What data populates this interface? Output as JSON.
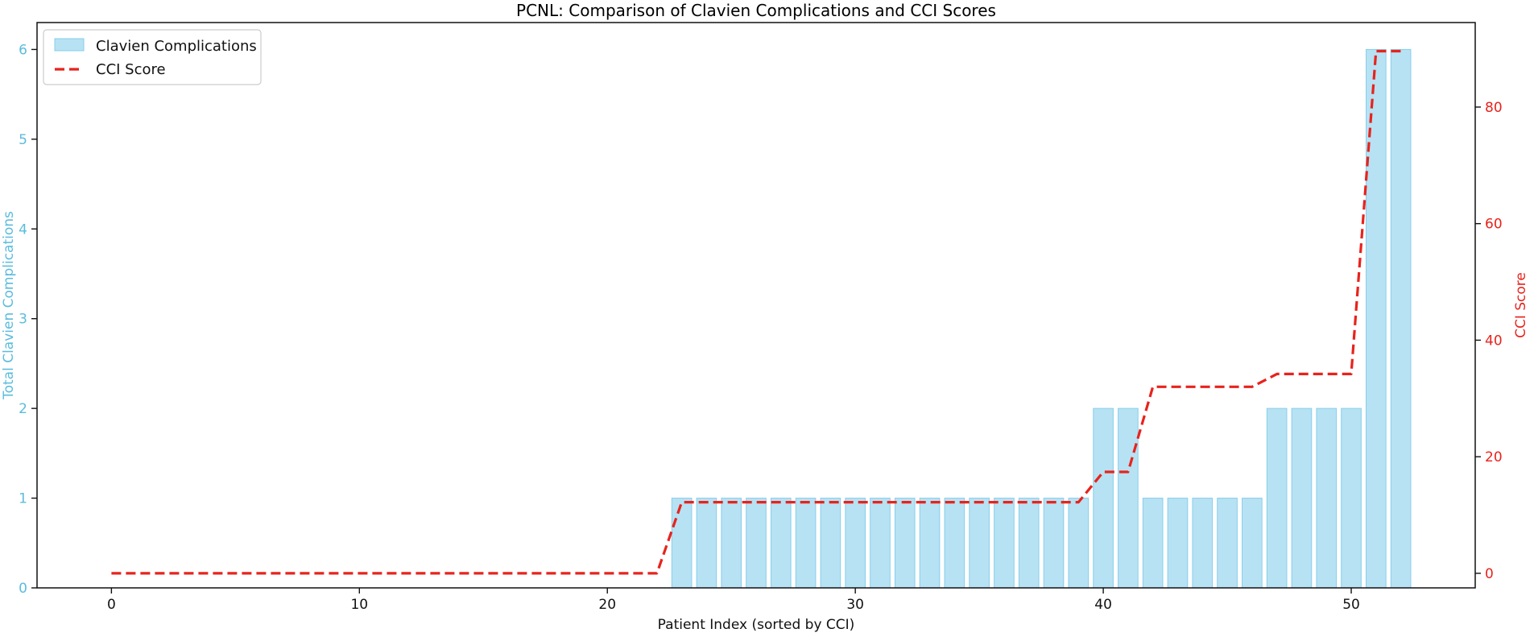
{
  "chart_data": {
    "type": "bar+line",
    "title": "PCNL: Comparison of Clavien Complications and CCI Scores",
    "xlabel": "Patient Index (sorted by CCI)",
    "ylabel_left": "Total Clavien Complications",
    "ylabel_right": "CCI Score",
    "xlim": [
      -3,
      55
    ],
    "ylim_left": [
      0,
      6.3
    ],
    "ylim_right": [
      -2.5,
      94.5
    ],
    "xticks": [
      0,
      10,
      20,
      30,
      40,
      50
    ],
    "yticks_left": [
      0,
      1,
      2,
      3,
      4,
      5,
      6
    ],
    "yticks_right": [
      0,
      20,
      40,
      60,
      80
    ],
    "grid": false,
    "legend_position": "top-left",
    "colors": {
      "bars": "#87ceeb",
      "line": "#e8231c",
      "left_axis": "#5bbcdd",
      "right_axis": "#e8231c",
      "text": "#111111"
    },
    "series": [
      {
        "name": "Clavien Complications",
        "kind": "bar",
        "x": [
          0,
          1,
          2,
          3,
          4,
          5,
          6,
          7,
          8,
          9,
          10,
          11,
          12,
          13,
          14,
          15,
          16,
          17,
          18,
          19,
          20,
          21,
          22,
          23,
          24,
          25,
          26,
          27,
          28,
          29,
          30,
          31,
          32,
          33,
          34,
          35,
          36,
          37,
          38,
          39,
          40,
          41,
          42,
          43,
          44,
          45,
          46,
          47,
          48,
          49,
          50,
          51,
          52
        ],
        "values": [
          0,
          0,
          0,
          0,
          0,
          0,
          0,
          0,
          0,
          0,
          0,
          0,
          0,
          0,
          0,
          0,
          0,
          0,
          0,
          0,
          0,
          0,
          0,
          1,
          1,
          1,
          1,
          1,
          1,
          1,
          1,
          1,
          1,
          1,
          1,
          1,
          1,
          1,
          1,
          1,
          2,
          2,
          1,
          1,
          1,
          1,
          1,
          2,
          2,
          2,
          2,
          6,
          6
        ]
      },
      {
        "name": "CCI Score",
        "kind": "line",
        "style": "dashed",
        "x": [
          0,
          1,
          2,
          3,
          4,
          5,
          6,
          7,
          8,
          9,
          10,
          11,
          12,
          13,
          14,
          15,
          16,
          17,
          18,
          19,
          20,
          21,
          22,
          23,
          24,
          25,
          26,
          27,
          28,
          29,
          30,
          31,
          32,
          33,
          34,
          35,
          36,
          37,
          38,
          39,
          40,
          41,
          42,
          43,
          44,
          45,
          46,
          47,
          48,
          49,
          50,
          51,
          52
        ],
        "values": [
          0,
          0,
          0,
          0,
          0,
          0,
          0,
          0,
          0,
          0,
          0,
          0,
          0,
          0,
          0,
          0,
          0,
          0,
          0,
          0,
          0,
          0,
          0,
          12.2,
          12.2,
          12.2,
          12.2,
          12.2,
          12.2,
          12.2,
          12.2,
          12.2,
          12.2,
          12.2,
          12.2,
          12.2,
          12.2,
          12.2,
          12.2,
          12.2,
          17.4,
          17.4,
          32.0,
          32.0,
          32.0,
          32.0,
          32.0,
          34.2,
          34.2,
          34.2,
          34.2,
          89.6,
          89.6
        ]
      }
    ]
  }
}
